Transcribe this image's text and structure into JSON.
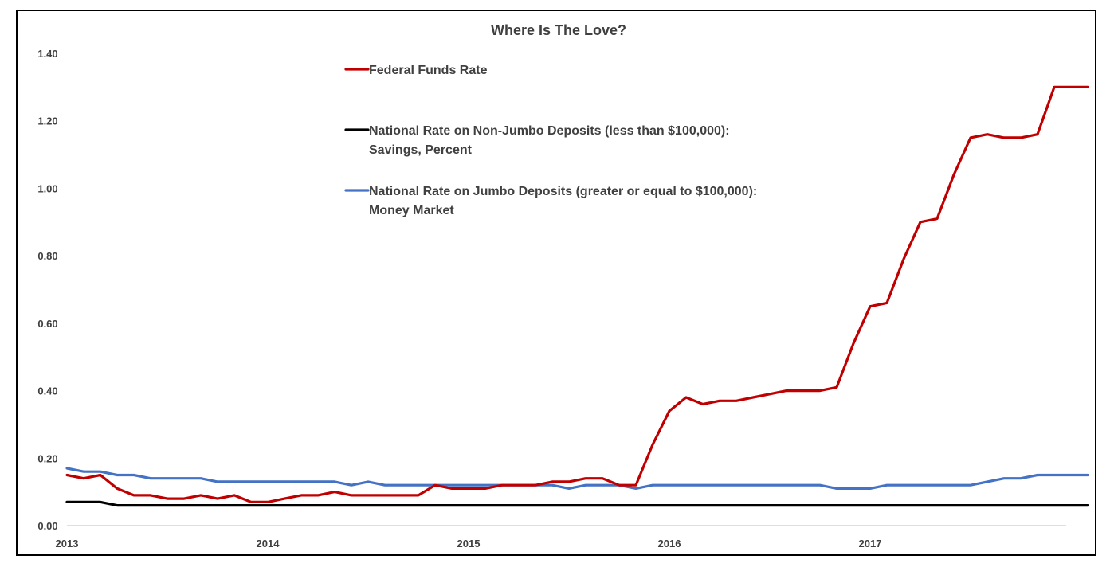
{
  "chart_data": {
    "type": "line",
    "title": "Where Is The Love?",
    "xlabel": "",
    "ylabel": "",
    "ylim": [
      0,
      1.4
    ],
    "y_ticks": [
      "0.00",
      "0.20",
      "0.40",
      "0.60",
      "0.80",
      "1.00",
      "1.20",
      "1.40"
    ],
    "x_tick_labels": [
      "2013",
      "2014",
      "2015",
      "2016",
      "2017"
    ],
    "x_start": "2013-01",
    "grid": false,
    "legend_position": "top-center",
    "series": [
      {
        "name": "Federal Funds Rate",
        "legend_lines": [
          "Federal Funds Rate"
        ],
        "color": "#C00000",
        "end_label": "1.30",
        "values": [
          0.15,
          0.14,
          0.15,
          0.11,
          0.09,
          0.09,
          0.08,
          0.08,
          0.09,
          0.08,
          0.09,
          0.07,
          0.07,
          0.08,
          0.09,
          0.09,
          0.1,
          0.09,
          0.09,
          0.09,
          0.09,
          0.09,
          0.12,
          0.11,
          0.11,
          0.11,
          0.12,
          0.12,
          0.12,
          0.13,
          0.13,
          0.14,
          0.14,
          0.12,
          0.12,
          0.24,
          0.34,
          0.38,
          0.36,
          0.37,
          0.37,
          0.38,
          0.39,
          0.4,
          0.4,
          0.4,
          0.41,
          0.54,
          0.65,
          0.66,
          0.79,
          0.9,
          0.91,
          1.04,
          1.15,
          1.16,
          1.15,
          1.15,
          1.16,
          1.3,
          1.3,
          1.3
        ]
      },
      {
        "name": "National Rate on Non-Jumbo Deposits (less than $100,000): Savings, Percent",
        "legend_lines": [
          "National Rate on Non-Jumbo Deposits (less than $100,000):",
          "Savings, Percent"
        ],
        "color": "#000000",
        "end_label": "0.06",
        "values": [
          0.07,
          0.07,
          0.07,
          0.06,
          0.06,
          0.06,
          0.06,
          0.06,
          0.06,
          0.06,
          0.06,
          0.06,
          0.06,
          0.06,
          0.06,
          0.06,
          0.06,
          0.06,
          0.06,
          0.06,
          0.06,
          0.06,
          0.06,
          0.06,
          0.06,
          0.06,
          0.06,
          0.06,
          0.06,
          0.06,
          0.06,
          0.06,
          0.06,
          0.06,
          0.06,
          0.06,
          0.06,
          0.06,
          0.06,
          0.06,
          0.06,
          0.06,
          0.06,
          0.06,
          0.06,
          0.06,
          0.06,
          0.06,
          0.06,
          0.06,
          0.06,
          0.06,
          0.06,
          0.06,
          0.06,
          0.06,
          0.06,
          0.06,
          0.06,
          0.06,
          0.06,
          0.06
        ]
      },
      {
        "name": "National Rate on Jumbo Deposits (greater or equal to $100,000): Money Market",
        "legend_lines": [
          "National Rate on Jumbo Deposits (greater or equal to $100,000):",
          "Money Market"
        ],
        "color": "#4472C4",
        "end_label": "0.15",
        "values": [
          0.17,
          0.16,
          0.16,
          0.15,
          0.15,
          0.14,
          0.14,
          0.14,
          0.14,
          0.13,
          0.13,
          0.13,
          0.13,
          0.13,
          0.13,
          0.13,
          0.13,
          0.12,
          0.13,
          0.12,
          0.12,
          0.12,
          0.12,
          0.12,
          0.12,
          0.12,
          0.12,
          0.12,
          0.12,
          0.12,
          0.11,
          0.12,
          0.12,
          0.12,
          0.11,
          0.12,
          0.12,
          0.12,
          0.12,
          0.12,
          0.12,
          0.12,
          0.12,
          0.12,
          0.12,
          0.12,
          0.11,
          0.11,
          0.11,
          0.12,
          0.12,
          0.12,
          0.12,
          0.12,
          0.12,
          0.13,
          0.14,
          0.14,
          0.15,
          0.15,
          0.15,
          0.15
        ]
      }
    ]
  }
}
